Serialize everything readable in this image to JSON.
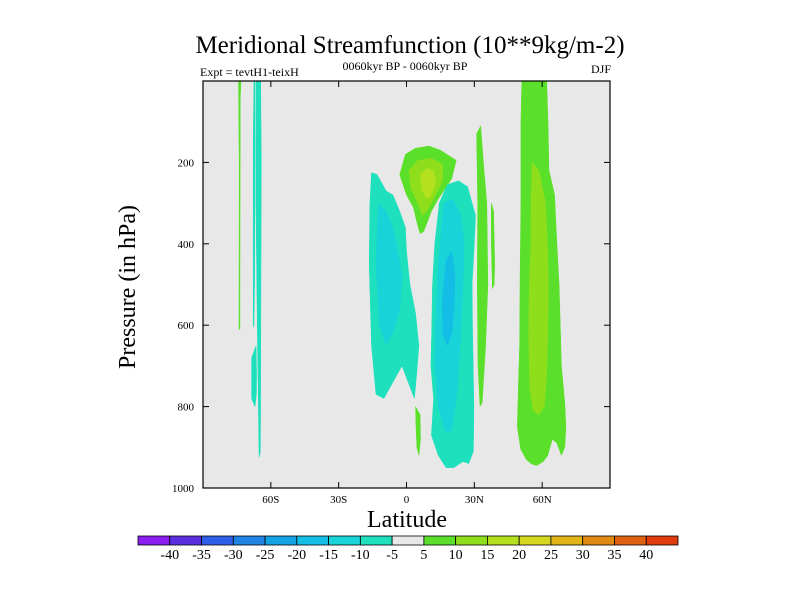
{
  "chart_data": {
    "type": "contour",
    "title": "Meridional Streamfunction (10**9kg/m-2)",
    "subtitle_left": "Expt = tevtH1-teixH",
    "subtitle_center": "0060kyr BP - 0060kyr BP",
    "subtitle_right": "DJF",
    "xlabel": "Latitude",
    "ylabel": "Pressure (in hPa)",
    "xlim": [
      -90,
      90
    ],
    "ylim": [
      1000,
      0
    ],
    "x_ticks": [
      {
        "value": -60,
        "label": "60S"
      },
      {
        "value": -30,
        "label": "30S"
      },
      {
        "value": 0,
        "label": "0"
      },
      {
        "value": 30,
        "label": "30N"
      },
      {
        "value": 60,
        "label": "60N"
      }
    ],
    "y_ticks": [
      {
        "value": 200,
        "label": "200"
      },
      {
        "value": 400,
        "label": "400"
      },
      {
        "value": 600,
        "label": "600"
      },
      {
        "value": 800,
        "label": "800"
      },
      {
        "value": 1000,
        "label": "1000"
      }
    ],
    "background_color": "#e8e8e8",
    "colorbar": {
      "levels": [
        -40,
        -35,
        -30,
        -25,
        -20,
        -15,
        -10,
        -5,
        5,
        10,
        15,
        20,
        25,
        30,
        35,
        40
      ],
      "labels": [
        "-40",
        "-35",
        "-30",
        "-25",
        "-20",
        "-15",
        "-10",
        "-5",
        "5",
        "10",
        "15",
        "20",
        "25",
        "30",
        "35",
        "40"
      ],
      "colors": [
        "#8a1ff0",
        "#5a2fe0",
        "#2f5fe8",
        "#1f84e6",
        "#14a2e6",
        "#14bde6",
        "#18d4d8",
        "#1ee0bd",
        "#e8e8e8",
        "#5ae02a",
        "#8ede1c",
        "#b4e01e",
        "#d6d820",
        "#e2b418",
        "#e08a14",
        "#e06012",
        "#e03c0c"
      ]
    },
    "regions": [
      {
        "name": "region-sh-narrow-streak",
        "level": "-5",
        "color": "#1ee0bd",
        "points": [
          [
            -67,
            0
          ],
          [
            -67.5,
            0
          ],
          [
            -67.8,
            150
          ],
          [
            -67.8,
            600
          ],
          [
            -67.5,
            605
          ],
          [
            -67.2,
            500
          ],
          [
            -67,
            150
          ]
        ]
      },
      {
        "name": "region-sh-thin-line-green",
        "level": "5",
        "color": "#5ae02a",
        "points": [
          [
            -74.3,
            0
          ],
          [
            -73.2,
            0
          ],
          [
            -73.5,
            40
          ],
          [
            -73.6,
            250
          ],
          [
            -73.7,
            610
          ],
          [
            -74.1,
            610
          ],
          [
            -74,
            200
          ]
        ]
      },
      {
        "name": "region-sh-column-teal",
        "level": "-5",
        "color": "#1ee0bd",
        "points": [
          [
            -66.5,
            0
          ],
          [
            -64.5,
            0
          ],
          [
            -64.2,
            200
          ],
          [
            -64.4,
            500
          ],
          [
            -64.5,
            700
          ],
          [
            -64.6,
            910
          ],
          [
            -65.2,
            925
          ],
          [
            -65.5,
            800
          ],
          [
            -66,
            600
          ],
          [
            -66.6,
            300
          ]
        ]
      },
      {
        "name": "region-sh-lower-blob",
        "level": "-5",
        "color": "#1ee0bd",
        "points": [
          [
            -68.5,
            680
          ],
          [
            -66.5,
            650
          ],
          [
            -66.3,
            720
          ],
          [
            -66.4,
            770
          ],
          [
            -67,
            800
          ],
          [
            -68.5,
            780
          ]
        ]
      },
      {
        "name": "region-tropical-left-teal",
        "level": "-5",
        "color": "#1ee0bd",
        "points": [
          [
            -15.5,
            225
          ],
          [
            -13,
            230
          ],
          [
            -9,
            270
          ],
          [
            -6,
            280
          ],
          [
            -3,
            320
          ],
          [
            -0.5,
            360
          ],
          [
            0,
            420
          ],
          [
            1.5,
            500
          ],
          [
            4,
            570
          ],
          [
            5.5,
            650
          ],
          [
            4.5,
            720
          ],
          [
            3.5,
            780
          ],
          [
            -2,
            700
          ],
          [
            -6,
            740
          ],
          [
            -10,
            780
          ],
          [
            -13.5,
            770
          ],
          [
            -15.5,
            650
          ],
          [
            -16.5,
            450
          ],
          [
            -16.2,
            300
          ]
        ]
      },
      {
        "name": "region-tropical-left-blue",
        "level": "-10",
        "color": "#18d4d8",
        "points": [
          [
            -12.5,
            300
          ],
          [
            -9,
            320
          ],
          [
            -6,
            360
          ],
          [
            -3.5,
            430
          ],
          [
            -2,
            480
          ],
          [
            -3,
            560
          ],
          [
            -6,
            620
          ],
          [
            -9,
            650
          ],
          [
            -12,
            600
          ],
          [
            -13.5,
            450
          ]
        ]
      },
      {
        "name": "region-tropical-upper-green",
        "level": "5",
        "color": "#5ae02a",
        "points": [
          [
            -3,
            230
          ],
          [
            -0.5,
            180
          ],
          [
            4,
            165
          ],
          [
            10,
            160
          ],
          [
            15,
            170
          ],
          [
            22,
            195
          ],
          [
            20,
            240
          ],
          [
            17,
            265
          ],
          [
            14,
            290
          ],
          [
            11,
            320
          ],
          [
            9,
            350
          ],
          [
            7.5,
            370
          ],
          [
            6,
            375
          ],
          [
            4.5,
            345
          ],
          [
            3,
            310
          ],
          [
            0,
            280
          ]
        ]
      },
      {
        "name": "region-tropical-upper-lime",
        "level": "10",
        "color": "#8ede1c",
        "points": [
          [
            1,
            220
          ],
          [
            5,
            195
          ],
          [
            11,
            190
          ],
          [
            16,
            205
          ],
          [
            16,
            245
          ],
          [
            12,
            290
          ],
          [
            9,
            320
          ],
          [
            7,
            330
          ],
          [
            5,
            300
          ],
          [
            2,
            265
          ]
        ]
      },
      {
        "name": "region-tropical-upper-yellow",
        "level": "15",
        "color": "#b4e01e",
        "points": [
          [
            6,
            230
          ],
          [
            9,
            215
          ],
          [
            12,
            220
          ],
          [
            13,
            250
          ],
          [
            11,
            280
          ],
          [
            9,
            290
          ],
          [
            7,
            270
          ]
        ]
      },
      {
        "name": "region-tropical-right-teal",
        "level": "-5",
        "color": "#1ee0bd",
        "points": [
          [
            18,
            255
          ],
          [
            23,
            245
          ],
          [
            27,
            260
          ],
          [
            30.5,
            330
          ],
          [
            30,
            400
          ],
          [
            29,
            500
          ],
          [
            29.2,
            600
          ],
          [
            29.5,
            700
          ],
          [
            29.8,
            800
          ],
          [
            29.6,
            910
          ],
          [
            27.5,
            940
          ],
          [
            25,
            935
          ],
          [
            21,
            950
          ],
          [
            17.5,
            950
          ],
          [
            14,
            920
          ],
          [
            11,
            870
          ],
          [
            12,
            780
          ],
          [
            10.8,
            700
          ],
          [
            11.2,
            600
          ],
          [
            11.5,
            500
          ],
          [
            12.5,
            400
          ],
          [
            14.5,
            300
          ]
        ]
      },
      {
        "name": "region-tropical-right-blue",
        "level": "-10",
        "color": "#18d4d8",
        "points": [
          [
            16.5,
            300
          ],
          [
            20.5,
            290
          ],
          [
            24,
            330
          ],
          [
            25.5,
            400
          ],
          [
            25,
            500
          ],
          [
            24,
            620
          ],
          [
            22.5,
            760
          ],
          [
            20,
            860
          ],
          [
            17,
            860
          ],
          [
            14,
            800
          ],
          [
            12.5,
            700
          ],
          [
            13,
            580
          ],
          [
            14,
            450
          ]
        ]
      },
      {
        "name": "region-tropical-right-blue-core",
        "level": "-15",
        "color": "#14bde6",
        "points": [
          [
            17.5,
            440
          ],
          [
            20,
            420
          ],
          [
            21.5,
            480
          ],
          [
            21,
            560
          ],
          [
            20,
            620
          ],
          [
            18,
            650
          ],
          [
            16,
            620
          ],
          [
            15.8,
            540
          ]
        ]
      },
      {
        "name": "region-small-green-near-eq",
        "level": "5",
        "color": "#5ae02a",
        "points": [
          [
            4,
            800
          ],
          [
            6,
            820
          ],
          [
            6.2,
            880
          ],
          [
            5.5,
            920
          ],
          [
            4.6,
            900
          ],
          [
            4.2,
            850
          ]
        ]
      },
      {
        "name": "region-nh-thin-streak",
        "level": "5",
        "color": "#5ae02a",
        "points": [
          [
            31,
            130
          ],
          [
            32.8,
            110
          ],
          [
            34,
            200
          ],
          [
            35.5,
            300
          ],
          [
            36,
            500
          ],
          [
            35,
            650
          ],
          [
            33.5,
            790
          ],
          [
            32.5,
            800
          ],
          [
            31.6,
            700
          ],
          [
            31.3,
            500
          ],
          [
            31.5,
            300
          ]
        ]
      },
      {
        "name": "region-nh-thin-streak2",
        "level": "5",
        "color": "#5ae02a",
        "points": [
          [
            37.5,
            300
          ],
          [
            38.5,
            320
          ],
          [
            39,
            450
          ],
          [
            38.8,
            500
          ],
          [
            38,
            510
          ],
          [
            37.5,
            400
          ]
        ]
      },
      {
        "name": "region-nh-column-green",
        "level": "5",
        "color": "#5ae02a",
        "points": [
          [
            51,
            0
          ],
          [
            62,
            0
          ],
          [
            62.6,
            100
          ],
          [
            63,
            220
          ],
          [
            65.5,
            280
          ],
          [
            66.5,
            400
          ],
          [
            67.5,
            500
          ],
          [
            68,
            600
          ],
          [
            68.5,
            700
          ],
          [
            70,
            790
          ],
          [
            70.5,
            850
          ],
          [
            70,
            900
          ],
          [
            68.5,
            920
          ],
          [
            66.5,
            890
          ],
          [
            64.5,
            880
          ],
          [
            62.5,
            920
          ],
          [
            60.5,
            935
          ],
          [
            57.5,
            945
          ],
          [
            55,
            940
          ],
          [
            53,
            930
          ],
          [
            50.5,
            905
          ],
          [
            49,
            850
          ],
          [
            49.5,
            750
          ],
          [
            50,
            650
          ],
          [
            50.2,
            500
          ],
          [
            50.6,
            300
          ],
          [
            50.6,
            100
          ]
        ]
      },
      {
        "name": "region-nh-column-lime",
        "level": "10",
        "color": "#8ede1c",
        "points": [
          [
            55.5,
            200
          ],
          [
            58.5,
            220
          ],
          [
            61.5,
            300
          ],
          [
            62.5,
            420
          ],
          [
            62.8,
            520
          ],
          [
            62.5,
            620
          ],
          [
            62,
            720
          ],
          [
            61,
            800
          ],
          [
            58.5,
            820
          ],
          [
            56,
            810
          ],
          [
            54.5,
            750
          ],
          [
            54,
            620
          ],
          [
            54.3,
            500
          ],
          [
            55,
            400
          ],
          [
            55.2,
            280
          ]
        ]
      }
    ]
  }
}
